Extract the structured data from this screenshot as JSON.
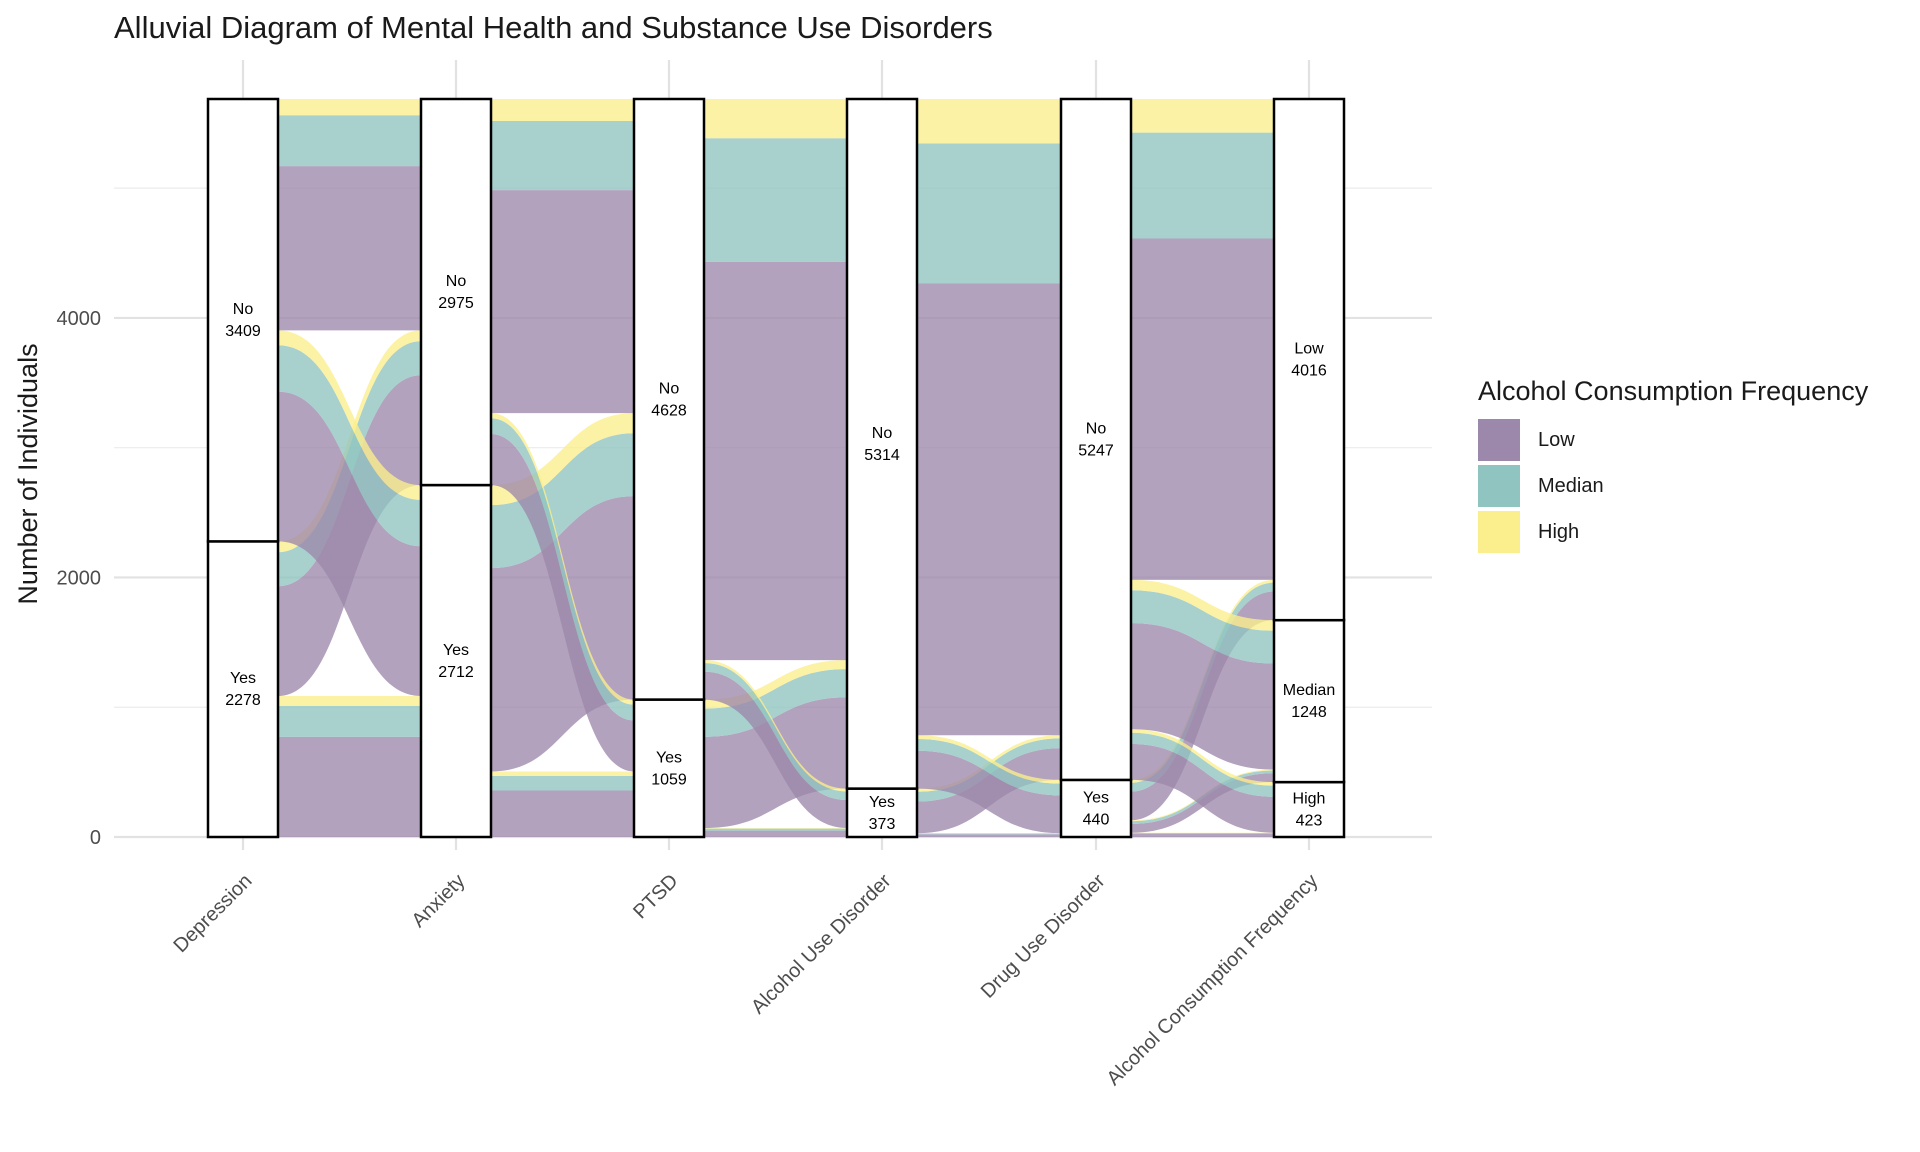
{
  "chart_data": {
    "type": "alluvial",
    "title": "Alluvial Diagram of Mental Health and Substance Use Disorders",
    "ylabel": "Number of Individuals",
    "xlabel": "",
    "ylim": [
      0,
      5687
    ],
    "y_ticks": [
      0,
      2000,
      4000
    ],
    "grid": true,
    "legend_position": "right",
    "legend_title": "Alcohol Consumption Frequency",
    "fill_variable": "Alcohol Consumption Frequency",
    "axes": [
      {
        "name": "Depression",
        "strata": [
          {
            "label": "Yes",
            "value": 2278
          },
          {
            "label": "No",
            "value": 3409
          }
        ]
      },
      {
        "name": "Anxiety",
        "strata": [
          {
            "label": "Yes",
            "value": 2712
          },
          {
            "label": "No",
            "value": 2975
          }
        ]
      },
      {
        "name": "PTSD",
        "strata": [
          {
            "label": "Yes",
            "value": 1059
          },
          {
            "label": "No",
            "value": 4628
          }
        ]
      },
      {
        "name": "Alcohol Use Disorder",
        "strata": [
          {
            "label": "Yes",
            "value": 373
          },
          {
            "label": "No",
            "value": 5314
          }
        ]
      },
      {
        "name": "Drug Use Disorder",
        "strata": [
          {
            "label": "Yes",
            "value": 440
          },
          {
            "label": "No",
            "value": 5247
          }
        ]
      },
      {
        "name": "Alcohol Consumption Frequency",
        "strata": [
          {
            "label": "High",
            "value": 423
          },
          {
            "label": "Median",
            "value": 1248
          },
          {
            "label": "Low",
            "value": 4016
          }
        ]
      }
    ],
    "series": [
      {
        "name": "Low",
        "color": "#9c88aa"
      },
      {
        "name": "Median",
        "color": "#8fc4c0"
      },
      {
        "name": "High",
        "color": "#fbee8c"
      }
    ]
  }
}
